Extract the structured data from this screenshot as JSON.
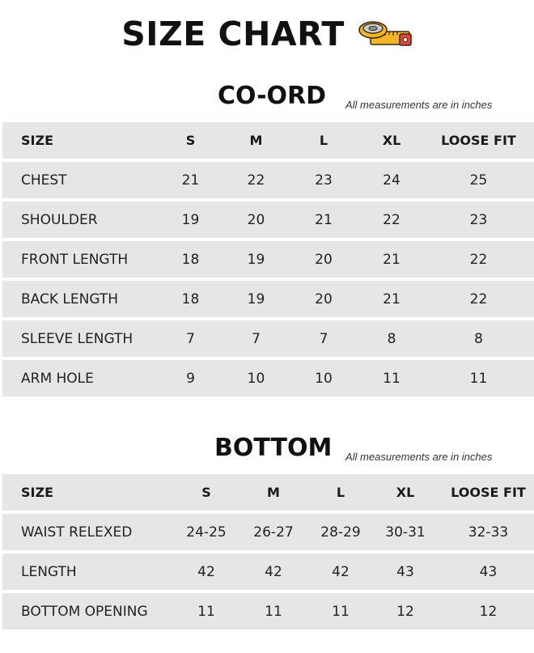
{
  "title": "SIZE CHART",
  "icons": {
    "title_icon": "measuring-tape-icon"
  },
  "colors": {
    "row_bg": "#e6e6e6",
    "tape_yellow": "#f2b728",
    "tape_red": "#e0443a"
  },
  "coord": {
    "heading": "CO-ORD",
    "note": "All measurements are in inches",
    "columns": [
      "SIZE",
      "S",
      "M",
      "L",
      "XL",
      "LOOSE FIT"
    ],
    "rows": [
      {
        "label": "CHEST",
        "values": [
          "21",
          "22",
          "23",
          "24",
          "25"
        ]
      },
      {
        "label": "SHOULDER",
        "values": [
          "19",
          "20",
          "21",
          "22",
          "23"
        ]
      },
      {
        "label": "FRONT LENGTH",
        "values": [
          "18",
          "19",
          "20",
          "21",
          "22"
        ]
      },
      {
        "label": "BACK LENGTH",
        "values": [
          "18",
          "19",
          "20",
          "21",
          "22"
        ]
      },
      {
        "label": "SLEEVE LENGTH",
        "values": [
          "7",
          "7",
          "7",
          "8",
          "8"
        ]
      },
      {
        "label": "ARM HOLE",
        "values": [
          "9",
          "10",
          "10",
          "11",
          "11"
        ]
      }
    ]
  },
  "bottom": {
    "heading": "BOTTOM",
    "note": "All measurements are in inches",
    "columns": [
      "SIZE",
      "S",
      "M",
      "L",
      "XL",
      "LOOSE FIT"
    ],
    "rows": [
      {
        "label": "WAIST RELEXED",
        "values": [
          "24-25",
          "26-27",
          "28-29",
          "30-31",
          "32-33"
        ]
      },
      {
        "label": "LENGTH",
        "values": [
          "42",
          "42",
          "42",
          "43",
          "43"
        ]
      },
      {
        "label": "BOTTOM OPENING",
        "values": [
          "11",
          "11",
          "11",
          "12",
          "12"
        ]
      }
    ]
  }
}
